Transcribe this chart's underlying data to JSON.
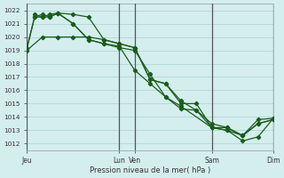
{
  "background_color": "#d4eeee",
  "grid_color": "#b8d8d8",
  "line_color": "#1a5c1a",
  "ylabel_min": 1012,
  "ylabel_max": 1022,
  "xlabel": "Pression niveau de la mer( hPa )",
  "xtick_labels": [
    "Jeu",
    "Lun",
    "Ven",
    "Sam",
    "Dim"
  ],
  "xtick_positions": [
    0,
    36,
    42,
    72,
    96
  ],
  "vlines_x": [
    0,
    36,
    42,
    72,
    96
  ],
  "total_x": 96,
  "series": [
    {
      "x": [
        0,
        6,
        12,
        18,
        24,
        30,
        36,
        42,
        48,
        54,
        60,
        66,
        72,
        78,
        84,
        90,
        96
      ],
      "y": [
        1019.0,
        1020.0,
        1020.0,
        1020.0,
        1020.0,
        1019.8,
        1019.5,
        1019.2,
        1016.8,
        1016.5,
        1015.0,
        1015.0,
        1013.2,
        1013.0,
        1012.6,
        1013.5,
        1013.8
      ]
    },
    {
      "x": [
        0,
        3,
        6,
        9,
        12,
        18,
        24,
        30,
        36,
        42,
        48,
        54,
        60,
        66,
        72,
        78,
        84,
        90,
        96
      ],
      "y": [
        1019.2,
        1021.5,
        1021.7,
        1021.5,
        1021.8,
        1021.7,
        1021.5,
        1019.8,
        1019.5,
        1019.2,
        1016.8,
        1016.5,
        1015.2,
        1014.5,
        1013.2,
        1013.2,
        1012.6,
        1013.5,
        1013.8
      ]
    },
    {
      "x": [
        3,
        6,
        9,
        12,
        18,
        24,
        30,
        36,
        42,
        48,
        54,
        60,
        66,
        72,
        78,
        84,
        90,
        96
      ],
      "y": [
        1021.7,
        1021.5,
        1021.7,
        1021.8,
        1021.0,
        1019.8,
        1019.5,
        1019.3,
        1017.5,
        1016.5,
        1015.5,
        1014.6,
        1014.5,
        1013.5,
        1013.2,
        1012.6,
        1013.8,
        1013.9
      ]
    },
    {
      "x": [
        0,
        3,
        6,
        9,
        12,
        18,
        24,
        30,
        36,
        42,
        48,
        54,
        60,
        72,
        78,
        84,
        90,
        96
      ],
      "y": [
        1019.1,
        1021.5,
        1021.5,
        1021.5,
        1021.8,
        1021.0,
        1019.8,
        1019.5,
        1019.2,
        1019.0,
        1017.2,
        1015.5,
        1014.8,
        1013.2,
        1013.0,
        1012.2,
        1012.5,
        1013.9
      ]
    }
  ]
}
